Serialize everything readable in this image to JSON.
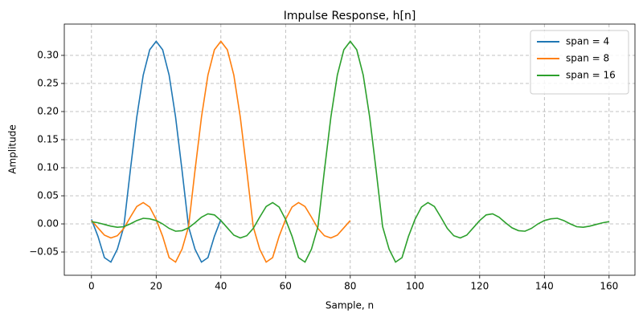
{
  "chart_data": {
    "type": "line",
    "title": "Impulse Response, h[n]",
    "x_label": "Sample, n",
    "y_label": "Amplitude",
    "xlim": [
      -8.4,
      168
    ],
    "ylim": [
      -0.0914,
      0.3557
    ],
    "xticks": [
      0,
      20,
      40,
      60,
      80,
      100,
      120,
      140,
      160
    ],
    "yticks": [
      {
        "value": -0.05,
        "label": "−0.05"
      },
      {
        "value": 0,
        "label": "0.00"
      },
      {
        "value": 0.05,
        "label": "0.05"
      },
      {
        "value": 0.1,
        "label": "0.10"
      },
      {
        "value": 0.15,
        "label": "0.15"
      },
      {
        "value": 0.2,
        "label": "0.20"
      },
      {
        "value": 0.25,
        "label": "0.25"
      },
      {
        "value": 0.3,
        "label": "0.30"
      }
    ],
    "grid": true,
    "legend": "upper right",
    "series": [
      {
        "name": "span = 4",
        "color": "#1f77b4",
        "x": [
          0,
          2,
          4,
          6,
          8,
          10,
          12,
          14,
          16,
          18,
          20,
          22,
          24,
          26,
          28,
          30,
          32,
          34,
          36,
          38,
          40
        ],
        "values": [
          0.008,
          -0.022,
          -0.06,
          -0.068,
          -0.045,
          -0.005,
          0.095,
          0.19,
          0.265,
          0.31,
          0.325,
          0.31,
          0.265,
          0.19,
          0.095,
          -0.005,
          -0.045,
          -0.068,
          -0.06,
          -0.022,
          0.008
        ]
      },
      {
        "name": "span = 8",
        "color": "#ff7f0e",
        "x": [
          0,
          2,
          4,
          6,
          8,
          10,
          12,
          14,
          16,
          18,
          20,
          22,
          24,
          26,
          28,
          30,
          32,
          34,
          36,
          38,
          40,
          42,
          44,
          46,
          48,
          50,
          52,
          54,
          56,
          58,
          60,
          62,
          64,
          66,
          68,
          70,
          72,
          74,
          76,
          78,
          80
        ],
        "values": [
          0.006,
          -0.007,
          -0.02,
          -0.025,
          -0.021,
          -0.008,
          0.012,
          0.031,
          0.038,
          0.03,
          0.008,
          -0.022,
          -0.06,
          -0.068,
          -0.045,
          -0.005,
          0.095,
          0.19,
          0.265,
          0.31,
          0.325,
          0.31,
          0.265,
          0.19,
          0.095,
          -0.005,
          -0.045,
          -0.068,
          -0.06,
          -0.022,
          0.008,
          0.03,
          0.038,
          0.031,
          0.012,
          -0.008,
          -0.021,
          -0.025,
          -0.02,
          -0.007,
          0.006
        ]
      },
      {
        "name": "span = 16",
        "color": "#2ca02c",
        "x": [
          0,
          2,
          4,
          6,
          8,
          10,
          12,
          14,
          16,
          18,
          20,
          22,
          24,
          26,
          28,
          30,
          32,
          34,
          36,
          38,
          40,
          42,
          44,
          46,
          48,
          50,
          52,
          54,
          56,
          58,
          60,
          62,
          64,
          66,
          68,
          70,
          72,
          74,
          76,
          78,
          80,
          82,
          84,
          86,
          88,
          90,
          92,
          94,
          96,
          98,
          100,
          102,
          104,
          106,
          108,
          110,
          112,
          114,
          116,
          118,
          120,
          122,
          124,
          126,
          128,
          130,
          132,
          134,
          136,
          138,
          140,
          142,
          144,
          146,
          148,
          150,
          152,
          154,
          156,
          158,
          160
        ],
        "values": [
          0.004,
          0.002,
          -0.001,
          -0.004,
          -0.006,
          -0.005,
          0.0,
          0.006,
          0.01,
          0.009,
          0.006,
          0.0,
          -0.008,
          -0.013,
          -0.012,
          -0.007,
          0.002,
          0.012,
          0.018,
          0.016,
          0.006,
          -0.007,
          -0.02,
          -0.025,
          -0.021,
          -0.008,
          0.012,
          0.031,
          0.038,
          0.03,
          0.008,
          -0.022,
          -0.06,
          -0.068,
          -0.045,
          -0.005,
          0.095,
          0.19,
          0.265,
          0.31,
          0.325,
          0.31,
          0.265,
          0.19,
          0.095,
          -0.005,
          -0.045,
          -0.068,
          -0.06,
          -0.022,
          0.008,
          0.03,
          0.038,
          0.031,
          0.012,
          -0.008,
          -0.021,
          -0.025,
          -0.02,
          -0.007,
          0.006,
          0.016,
          0.018,
          0.012,
          0.002,
          -0.007,
          -0.012,
          -0.013,
          -0.008,
          0.0,
          0.006,
          0.009,
          0.01,
          0.006,
          0.0,
          -0.005,
          -0.006,
          -0.004,
          -0.001,
          0.002,
          0.004
        ]
      }
    ]
  }
}
